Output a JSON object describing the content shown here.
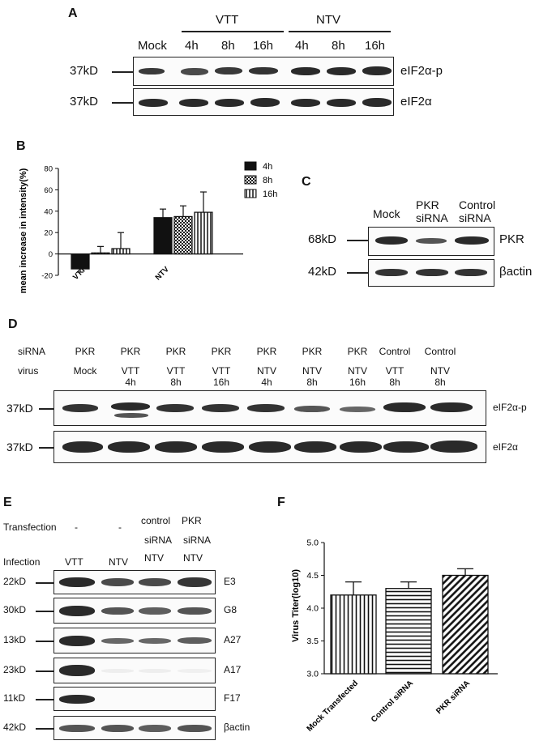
{
  "panels": {
    "A": {
      "letter": "A",
      "groups": [
        "VTT",
        "NTV"
      ],
      "lanes": [
        "Mock",
        "4h",
        "8h",
        "16h",
        "4h",
        "8h",
        "16h"
      ],
      "rows": [
        {
          "mw": "37kD",
          "label": "eIF2α-p"
        },
        {
          "mw": "37kD",
          "label": "eIF2α"
        }
      ]
    },
    "B": {
      "letter": "B",
      "ylabel": "mean increase in intensity(%)",
      "legend": [
        "4h",
        "8h",
        "16h"
      ]
    },
    "C": {
      "letter": "C",
      "lanes": [
        [
          "Mock"
        ],
        [
          "PKR",
          "siRNA"
        ],
        [
          "Control",
          "siRNA"
        ]
      ],
      "rows": [
        {
          "mw": "68kD",
          "label": "PKR"
        },
        {
          "mw": "42kD",
          "label": "βactin"
        }
      ]
    },
    "D": {
      "letter": "D",
      "row_titles": [
        "siRNA",
        "virus"
      ],
      "sirna": [
        "PKR",
        "PKR",
        "PKR",
        "PKR",
        "PKR",
        "PKR",
        "PKR",
        "Control",
        "Control"
      ],
      "virus": [
        [
          "Mock"
        ],
        [
          "VTT",
          "4h"
        ],
        [
          "VTT",
          "8h"
        ],
        [
          "VTT",
          "16h"
        ],
        [
          "NTV",
          "4h"
        ],
        [
          "NTV",
          "8h"
        ],
        [
          "NTV",
          "16h"
        ],
        [
          "VTT",
          "8h"
        ],
        [
          "NTV",
          "8h"
        ]
      ],
      "rows": [
        {
          "mw": "37kD",
          "label": "eIF2α-p"
        },
        {
          "mw": "37kD",
          "label": "eIF2α"
        }
      ]
    },
    "E": {
      "letter": "E",
      "transfection_title": "Transfection",
      "infection_title": "Infection",
      "transfection": [
        [
          "-"
        ],
        [
          "-"
        ],
        [
          "control",
          "siRNA"
        ],
        [
          "PKR",
          "siRNA"
        ]
      ],
      "infection": [
        "VTT",
        "NTV",
        "NTV",
        "NTV"
      ],
      "rows": [
        {
          "mw": "22kD",
          "label": "E3"
        },
        {
          "mw": "30kD",
          "label": "G8"
        },
        {
          "mw": "13kD",
          "label": "A27"
        },
        {
          "mw": "23kD",
          "label": "A17"
        },
        {
          "mw": "11kD",
          "label": "F17"
        },
        {
          "mw": "42kD",
          "label": "βactin"
        }
      ]
    },
    "F": {
      "letter": "F",
      "ylabel": "Virus Titer(log10)"
    }
  },
  "chart_data": [
    {
      "type": "bar",
      "panel": "B",
      "categories": [
        "VTT",
        "NTV"
      ],
      "series": [
        {
          "name": "4h",
          "values": [
            -14,
            34
          ],
          "errors": [
            3,
            8
          ]
        },
        {
          "name": "8h",
          "values": [
            1,
            35
          ],
          "errors": [
            6,
            10
          ]
        },
        {
          "name": "16h",
          "values": [
            5,
            39
          ],
          "errors": [
            15,
            19
          ]
        }
      ],
      "ylabel": "mean increase in intensity(%)",
      "ylim": [
        -20,
        80
      ],
      "yticks": [
        -20,
        0,
        20,
        40,
        60,
        80
      ],
      "legend_position": "top-right",
      "grid": false
    },
    {
      "type": "bar",
      "panel": "F",
      "categories": [
        "Mock Transfected",
        "Control siRNA",
        "PKR siRNA"
      ],
      "values": [
        4.2,
        4.3,
        4.5
      ],
      "errors": [
        0.2,
        0.1,
        0.1
      ],
      "ylabel": "Virus Titer(log10)",
      "ylim": [
        3.0,
        5.0
      ],
      "yticks": [
        "3.0",
        "3.5",
        "4.0",
        "4.5",
        "5.0"
      ],
      "grid": false
    }
  ]
}
